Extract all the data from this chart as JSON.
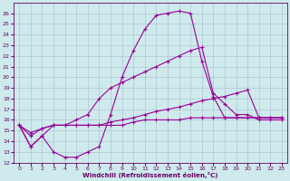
{
  "xlabel": "Windchill (Refroidissement éolien,°C)",
  "bg_color": "#ceeaec",
  "line_color": "#990099",
  "grid_color": "#aabccc",
  "xlim": [
    -0.5,
    23.5
  ],
  "ylim": [
    12,
    27
  ],
  "xticks": [
    0,
    1,
    2,
    3,
    4,
    5,
    6,
    7,
    8,
    9,
    10,
    11,
    12,
    13,
    14,
    15,
    16,
    17,
    18,
    19,
    20,
    21,
    22,
    23
  ],
  "yticks": [
    12,
    13,
    14,
    15,
    16,
    17,
    18,
    19,
    20,
    21,
    22,
    23,
    24,
    25,
    26
  ],
  "line1_x": [
    0,
    1,
    2,
    3,
    4,
    5,
    6,
    7,
    8,
    9,
    10,
    11,
    12,
    13,
    14,
    15,
    16,
    17,
    18,
    21,
    22,
    23
  ],
  "line1_y": [
    15.5,
    13.5,
    14.5,
    13.0,
    12.5,
    12.5,
    13.0,
    13.5,
    16.5,
    20.0,
    22.5,
    24.5,
    25.8,
    26.0,
    26.2,
    26.0,
    21.5,
    18.2,
    16.2,
    16.2,
    16.2,
    16.2
  ],
  "line2_x": [
    0,
    1,
    2,
    3,
    4,
    5,
    6,
    7,
    8,
    9,
    10,
    11,
    12,
    13,
    14,
    15,
    16,
    17,
    18,
    19,
    20,
    21,
    22,
    23
  ],
  "line2_y": [
    15.5,
    13.5,
    14.5,
    15.5,
    15.5,
    16.0,
    16.5,
    18.0,
    19.0,
    19.5,
    20.0,
    20.5,
    21.0,
    21.5,
    22.0,
    22.5,
    22.8,
    18.5,
    17.5,
    16.5,
    16.5,
    16.0,
    16.0,
    16.0
  ],
  "line3_x": [
    0,
    1,
    2,
    3,
    4,
    5,
    6,
    7,
    8,
    9,
    10,
    11,
    12,
    13,
    14,
    15,
    16,
    17,
    18,
    19,
    20,
    21,
    22,
    23
  ],
  "line3_y": [
    15.5,
    14.5,
    15.2,
    15.5,
    15.5,
    15.5,
    15.5,
    15.5,
    15.8,
    16.0,
    16.2,
    16.5,
    16.8,
    17.0,
    17.2,
    17.5,
    17.8,
    18.0,
    18.2,
    18.5,
    18.8,
    16.2,
    16.2,
    16.2
  ],
  "line4_x": [
    0,
    1,
    2,
    3,
    4,
    5,
    6,
    7,
    8,
    9,
    10,
    11,
    12,
    13,
    14,
    15,
    16,
    17,
    18,
    19,
    20,
    21,
    22,
    23
  ],
  "line4_y": [
    15.5,
    14.8,
    15.2,
    15.5,
    15.5,
    15.5,
    15.5,
    15.5,
    15.5,
    15.5,
    15.8,
    16.0,
    16.0,
    16.0,
    16.0,
    16.2,
    16.2,
    16.2,
    16.2,
    16.2,
    16.2,
    16.2,
    16.2,
    16.2
  ]
}
